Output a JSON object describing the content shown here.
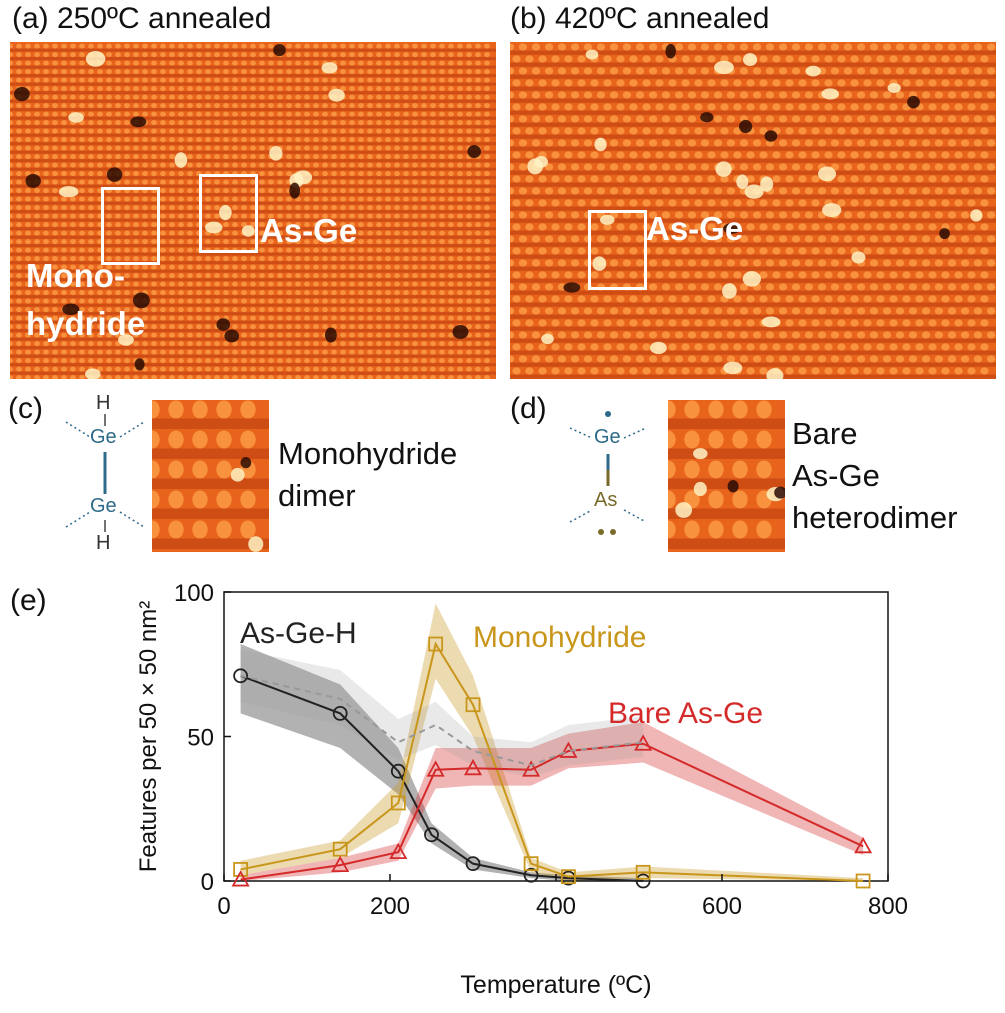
{
  "panels": {
    "a": {
      "label": "(a) 250ºC annealed",
      "box_left": "Mono-",
      "box_left2": "hydride",
      "box_right": "As-Ge"
    },
    "b": {
      "label": "(b) 420ºC annealed",
      "box": "As-Ge"
    },
    "c": {
      "label": "(c)",
      "caption_line1": "Monohydride",
      "caption_line2": "dimer",
      "atoms": {
        "top_h": "H",
        "ge1": "Ge",
        "ge2": "Ge",
        "bottom_h": "H"
      }
    },
    "d": {
      "label": "(d)",
      "caption_line1": "Bare",
      "caption_line2": "As-Ge",
      "caption_line3": "heterodimer",
      "atoms": {
        "ge": "Ge",
        "as": "As"
      }
    },
    "e": {
      "label": "(e)"
    }
  },
  "colors": {
    "asgeh": "#222222",
    "monohydride": "#c9961c",
    "bare": "#d42a2a",
    "stm_base": "#e8641c",
    "ge_atom": "#2e6a8a",
    "as_atom": "#7a6a2a"
  },
  "chart_data": {
    "type": "line",
    "xlabel": "Temperature (ºC)",
    "ylabel": "Features per 50 × 50 nm²",
    "xlim": [
      0,
      800
    ],
    "ylim": [
      0,
      100
    ],
    "xticks": [
      "0",
      "200",
      "400",
      "600",
      "800"
    ],
    "yticks": [
      "0",
      "50",
      "100"
    ],
    "grid": false,
    "series": [
      {
        "name": "As-Ge-H",
        "marker": "circle",
        "color": "#222222",
        "x": [
          20,
          140,
          210,
          250,
          300,
          370,
          415,
          505
        ],
        "y": [
          71,
          58,
          38,
          16,
          6,
          2,
          1,
          0
        ],
        "lower": [
          58,
          46,
          30,
          13,
          4,
          1,
          0,
          0
        ],
        "upper": [
          82,
          68,
          46,
          20,
          8,
          3,
          2,
          1
        ]
      },
      {
        "name": "Monohydride",
        "marker": "square",
        "color": "#c9961c",
        "x": [
          20,
          140,
          210,
          255,
          300,
          370,
          415,
          505,
          770
        ],
        "y": [
          4,
          11,
          27,
          82,
          61,
          6,
          1.5,
          3,
          0
        ],
        "lower": [
          2,
          8,
          20,
          70,
          50,
          3,
          0,
          1,
          0
        ],
        "upper": [
          7,
          14,
          34,
          96,
          71,
          8,
          3,
          5,
          1
        ]
      },
      {
        "name": "Bare As-Ge",
        "marker": "triangle",
        "color": "#d42a2a",
        "x": [
          20,
          140,
          210,
          255,
          300,
          370,
          415,
          505,
          770
        ],
        "y": [
          0.5,
          5.5,
          10,
          38.5,
          39,
          38.5,
          45,
          47.5,
          12
        ],
        "lower": [
          0,
          3,
          7,
          32,
          33,
          33,
          39,
          41,
          9
        ],
        "upper": [
          2,
          8,
          13,
          46,
          46,
          46,
          51,
          55,
          15
        ]
      },
      {
        "marker": "none",
        "color": "#999999",
        "x": [
          20,
          140,
          210,
          255,
          300,
          370,
          415,
          505
        ],
        "y": [
          71,
          63,
          48,
          54,
          45,
          40,
          45,
          48
        ],
        "lower": [
          62,
          54,
          42,
          47,
          40,
          36,
          40,
          43
        ],
        "upper": [
          80,
          73,
          56,
          62,
          50,
          48,
          54,
          57
        ]
      }
    ]
  }
}
